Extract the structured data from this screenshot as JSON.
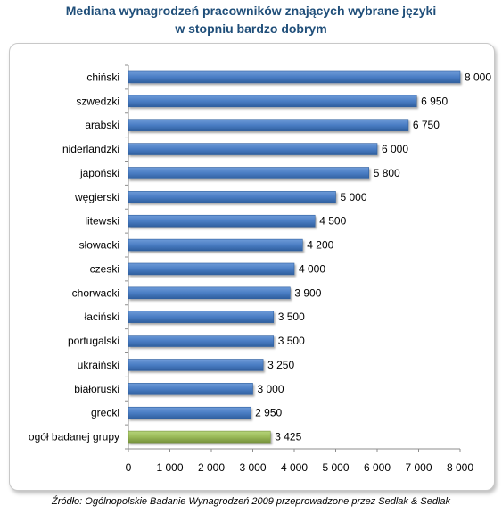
{
  "chart_data": {
    "type": "bar",
    "orientation": "horizontal",
    "title": "Mediana wynagrodzeń pracowników znających wybrane języki",
    "subtitle": "w stopniu bardzo dobrym",
    "categories": [
      "chiński",
      "szwedzki",
      "arabski",
      "niderlandzki",
      "japoński",
      "węgierski",
      "litewski",
      "słowacki",
      "czeski",
      "chorwacki",
      "łaciński",
      "portugalski",
      "ukraiński",
      "białoruski",
      "grecki",
      "ogół badanej grupy"
    ],
    "values": [
      8000,
      6950,
      6750,
      6000,
      5800,
      5000,
      4500,
      4200,
      4000,
      3900,
      3500,
      3500,
      3250,
      3000,
      2950,
      3425
    ],
    "value_labels": [
      "8 000",
      "6 950",
      "6 750",
      "6 000",
      "5 800",
      "5 000",
      "4 500",
      "4 200",
      "4 000",
      "3 900",
      "3 500",
      "3 500",
      "3 250",
      "3 000",
      "2 950",
      "3 425"
    ],
    "xlim": [
      0,
      8000
    ],
    "x_ticks": [
      0,
      1000,
      2000,
      3000,
      4000,
      5000,
      6000,
      7000,
      8000
    ],
    "x_tick_labels": [
      "0",
      "1 000",
      "2 000",
      "3 000",
      "4 000",
      "5 000",
      "6 000",
      "7 000",
      "8 000"
    ],
    "grid": false,
    "legend": "none",
    "colors": {
      "bar": "#4a7dc4",
      "bar_dark": "#2f5f9e",
      "highlight": "#9bbb59",
      "highlight_dark": "#76923c",
      "title": "#1f4e79"
    }
  },
  "source": "Źródło: Ogólnopolskie Badanie Wynagrodzeń 2009 przeprowadzone przez Sedlak & Sedlak"
}
